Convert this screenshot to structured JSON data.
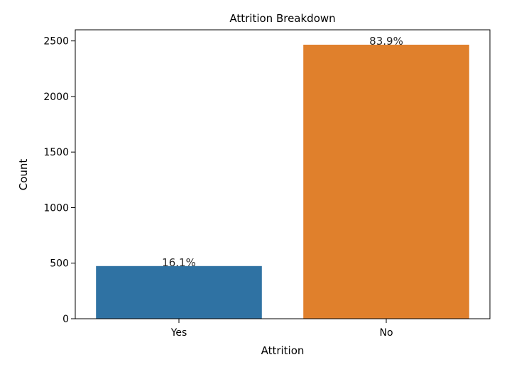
{
  "chart_data": {
    "type": "bar",
    "title": "Attrition Breakdown",
    "xlabel": "Attrition",
    "ylabel": "Count",
    "categories": [
      "Yes",
      "No"
    ],
    "values": [
      474,
      2466
    ],
    "data_labels": [
      "16.1%",
      "83.9%"
    ],
    "colors": [
      "#2f72a3",
      "#e0802c"
    ],
    "ylim": [
      0,
      2600
    ],
    "yticks": [
      0,
      500,
      1000,
      1500,
      2000,
      2500
    ],
    "grid": false,
    "legend": "none"
  }
}
